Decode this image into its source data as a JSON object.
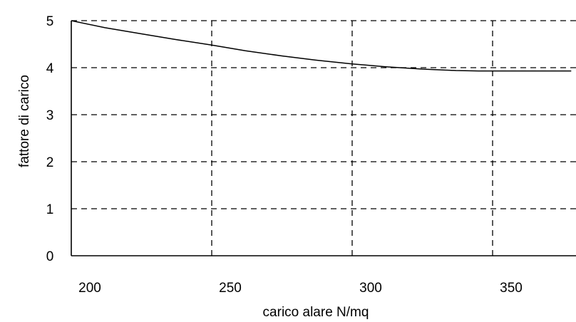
{
  "chart_data": {
    "type": "line",
    "title": "",
    "xlabel": "carico alare N/mq",
    "ylabel": "fattore di carico",
    "xlim": [
      200,
      378
    ],
    "ylim": [
      0,
      5
    ],
    "x_ticks": [
      200,
      250,
      300,
      350
    ],
    "y_ticks": [
      0,
      1,
      2,
      3,
      4,
      5
    ],
    "grid": true,
    "series": [
      {
        "x": [
          200,
          212,
          225,
          237,
          250,
          262,
          275,
          287,
          300,
          312,
          325,
          337,
          345,
          350,
          362,
          378
        ],
        "y": [
          5.0,
          4.85,
          4.72,
          4.6,
          4.48,
          4.36,
          4.25,
          4.16,
          4.08,
          4.02,
          3.97,
          3.94,
          3.93,
          3.93,
          3.93,
          3.93
        ]
      }
    ]
  }
}
